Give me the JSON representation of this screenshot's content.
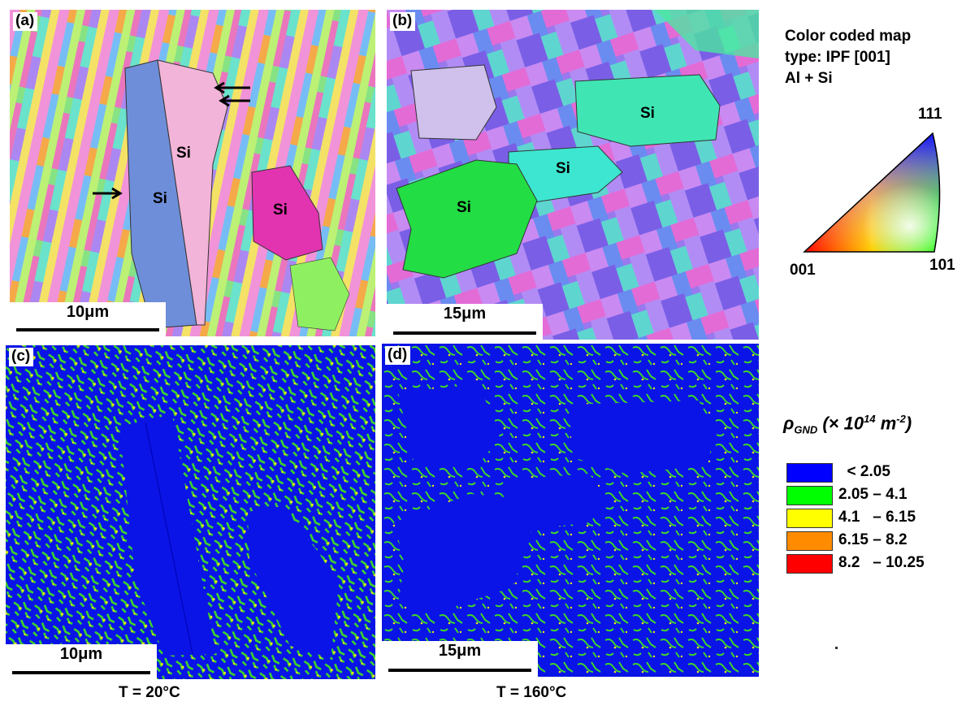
{
  "panels": {
    "a": {
      "tag": "(a)",
      "scale": "10μm",
      "si_labels": [
        "Si",
        "Si",
        "Si"
      ]
    },
    "b": {
      "tag": "(b)",
      "scale": "15μm",
      "si_labels": [
        "Si",
        "Si",
        "Si"
      ]
    },
    "c": {
      "tag": "(c)",
      "scale": "10μm"
    },
    "d": {
      "tag": "(d)",
      "scale": "15μm"
    }
  },
  "captions": {
    "left": "T = 20°C",
    "right": "T = 160°C"
  },
  "ipf_legend": {
    "title_lines": [
      "Color coded map",
      "type: IPF [001]",
      "Al + Si"
    ],
    "corner_111": "111",
    "corner_001": "001",
    "corner_101": "101"
  },
  "gnd_legend": {
    "symbol": "ρ",
    "subscript": "GND",
    "unit_prefix": "(× 10",
    "exponent": "14",
    "unit_mid": " m",
    "unit_exp": "-2",
    "unit_suffix": ")",
    "rows": [
      {
        "label": "  < 2.05",
        "color": "#0000ff"
      },
      {
        "label": "2.05 – 4.1",
        "color": "#00ff00"
      },
      {
        "label": "4.1   – 6.15",
        "color": "#ffff00"
      },
      {
        "label": "6.15 – 8.2",
        "color": "#ff8c00"
      },
      {
        "label": "8.2   – 10.25",
        "color": "#ff0000"
      }
    ]
  },
  "colors": {
    "map_blue": "#0a14e6",
    "gnd_green": "#3dd62a",
    "gnd_yellow": "#e6e61a"
  }
}
